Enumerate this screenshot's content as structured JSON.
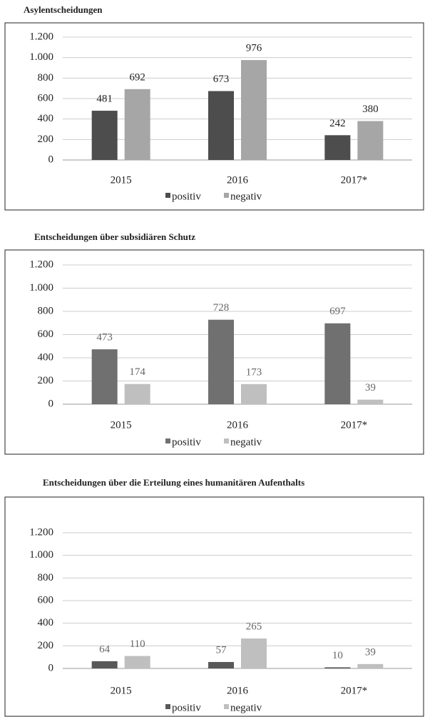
{
  "chart_data": [
    {
      "type": "bar",
      "title": "Asylentscheidungen",
      "categories": [
        "2015",
        "2016",
        "2017*"
      ],
      "series": [
        {
          "name": "positiv",
          "color": "#4d4d4d",
          "values": [
            481,
            673,
            242
          ]
        },
        {
          "name": "negativ",
          "color": "#a6a6a6",
          "values": [
            692,
            976,
            380
          ]
        }
      ],
      "ylim": [
        0,
        1200
      ],
      "yticks": [
        0,
        200,
        400,
        600,
        800,
        {
          "value": 1000,
          "label": "1.000"
        },
        {
          "value": 1200,
          "label": "1.200"
        }
      ],
      "grid": true,
      "legend": "bottom"
    },
    {
      "type": "bar",
      "title": "Entscheidungen über subsidiären Schutz",
      "categories": [
        "2015",
        "2016",
        "2017*"
      ],
      "series": [
        {
          "name": "positiv",
          "color": "#707070",
          "values": [
            473,
            728,
            697
          ]
        },
        {
          "name": "negativ",
          "color": "#bfbfbf",
          "values": [
            174,
            173,
            39
          ]
        }
      ],
      "ylim": [
        0,
        1200
      ],
      "yticks": [
        0,
        200,
        400,
        600,
        800,
        {
          "value": 1000,
          "label": "1.000"
        },
        {
          "value": 1200,
          "label": "1.200"
        }
      ],
      "grid": true,
      "legend": "bottom"
    },
    {
      "type": "bar",
      "title": "Entscheidungen über die Erteilung eines humanitären Aufenthalts",
      "categories": [
        "2015",
        "2016",
        "2017*"
      ],
      "series": [
        {
          "name": "positiv",
          "color": "#595959",
          "values": [
            64,
            57,
            10
          ]
        },
        {
          "name": "negativ",
          "color": "#bfbfbf",
          "values": [
            110,
            265,
            39
          ]
        }
      ],
      "ylim": [
        0,
        1200
      ],
      "yticks": [
        0,
        200,
        400,
        600,
        800,
        {
          "value": 1000,
          "label": "1.000"
        },
        {
          "value": 1200,
          "label": "1.200"
        }
      ],
      "grid": true,
      "legend": "bottom"
    }
  ]
}
